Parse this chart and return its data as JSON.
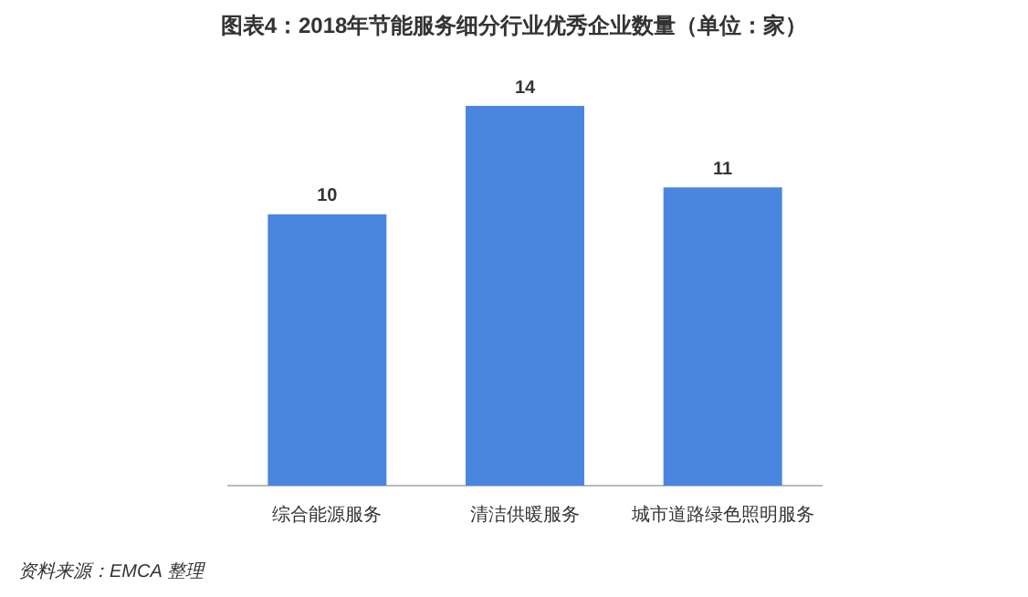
{
  "chart_data": {
    "type": "bar",
    "title": "图表4：2018年节能服务细分行业优秀企业数量（单位：家）",
    "categories": [
      "综合能源服务",
      "清洁供暖服务",
      "城市道路绿色照明服务"
    ],
    "values": [
      10,
      14,
      11
    ],
    "color": "#4a86e0",
    "data_labels": true,
    "grid": false,
    "legend": false,
    "tick_labels": "x",
    "annotations": [
      "资料来源：EMCA 整理"
    ]
  }
}
